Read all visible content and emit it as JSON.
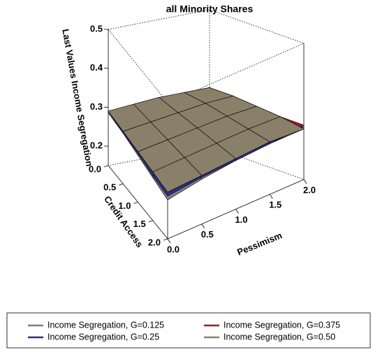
{
  "chart_data": {
    "type": "surface3d",
    "title": "all Minority Shares",
    "xlabel": "Pessimism",
    "ylabel": "Credit Access",
    "zlabel": "Last Values Income Segregation",
    "x": [
      0,
      0.5,
      1,
      1.5,
      2
    ],
    "y": [
      0,
      0.5,
      1,
      1.5,
      2
    ],
    "xlim": [
      0,
      2
    ],
    "ylim": [
      0,
      2
    ],
    "zlim": [
      0.15,
      0.5
    ],
    "xticks": [
      {
        "value": 0,
        "label": "0.0"
      },
      {
        "value": 0.5,
        "label": "0.5"
      },
      {
        "value": 1,
        "label": "1.0"
      },
      {
        "value": 1.5,
        "label": "1.5"
      },
      {
        "value": 2,
        "label": "2.0"
      }
    ],
    "yticks": [
      {
        "value": 0,
        "label": "0.0"
      },
      {
        "value": 0.5,
        "label": "0.5"
      },
      {
        "value": 1,
        "label": "1.0"
      },
      {
        "value": 1.5,
        "label": "1.5"
      },
      {
        "value": 2,
        "label": "2.0"
      }
    ],
    "zticks": [
      0.2,
      0.3,
      0.4,
      0.5
    ],
    "legend": "bottom",
    "series": [
      {
        "name": "Income Segregation, G=0.125",
        "color": "#7f7f7f",
        "values": [
          [
            0.285,
            0.29,
            0.295,
            0.295,
            0.295
          ],
          [
            0.28,
            0.285,
            0.29,
            0.295,
            0.295
          ],
          [
            0.27,
            0.28,
            0.285,
            0.29,
            0.29
          ],
          [
            0.26,
            0.27,
            0.28,
            0.285,
            0.285
          ],
          [
            0.25,
            0.265,
            0.275,
            0.28,
            0.28
          ]
        ]
      },
      {
        "name": "Income Segregation, G=0.25",
        "color": "#2e2e8c",
        "values": [
          [
            0.29,
            0.29,
            0.295,
            0.3,
            0.3
          ],
          [
            0.28,
            0.285,
            0.29,
            0.295,
            0.3
          ],
          [
            0.275,
            0.28,
            0.285,
            0.29,
            0.295
          ],
          [
            0.265,
            0.275,
            0.28,
            0.285,
            0.29
          ],
          [
            0.26,
            0.27,
            0.275,
            0.28,
            0.285
          ]
        ]
      },
      {
        "name": "Income Segregation, G=0.375",
        "color": "#a11c1c",
        "values": [
          [
            0.29,
            0.295,
            0.3,
            0.3,
            0.3
          ],
          [
            0.285,
            0.29,
            0.295,
            0.3,
            0.3
          ],
          [
            0.28,
            0.285,
            0.29,
            0.295,
            0.295
          ],
          [
            0.275,
            0.28,
            0.285,
            0.29,
            0.29
          ],
          [
            0.27,
            0.275,
            0.28,
            0.285,
            0.29
          ]
        ]
      },
      {
        "name": "Income Segregation, G=0.50",
        "color": "#8a806a",
        "values": [
          [
            0.29,
            0.295,
            0.3,
            0.3,
            0.3
          ],
          [
            0.285,
            0.29,
            0.295,
            0.3,
            0.3
          ],
          [
            0.28,
            0.285,
            0.29,
            0.295,
            0.295
          ],
          [
            0.275,
            0.28,
            0.285,
            0.29,
            0.29
          ],
          [
            0.27,
            0.275,
            0.28,
            0.285,
            0.28
          ]
        ]
      }
    ]
  }
}
